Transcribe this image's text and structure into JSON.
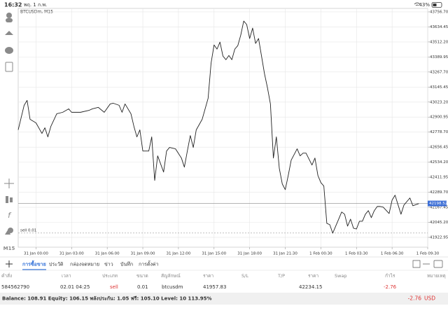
{
  "status_bar": {
    "time": "16:32",
    "date": "พฤ. 1 ก.พ.",
    "battery": "43%"
  },
  "chart_data": {
    "type": "line",
    "title": "BTCUSDm, M15",
    "timeframe": "M15",
    "x": [
      0,
      2,
      3,
      4,
      6,
      8,
      9,
      10,
      11,
      13,
      15,
      17,
      18,
      21,
      24,
      25,
      27,
      29,
      31,
      32,
      34,
      35,
      36,
      38,
      39,
      40,
      41,
      42,
      44,
      45,
      46,
      47,
      49,
      50,
      51,
      53,
      55,
      56,
      57,
      58,
      59,
      60,
      62,
      64,
      65,
      66,
      67,
      68,
      69,
      70,
      71,
      72,
      73,
      74,
      75,
      76,
      77,
      78,
      79,
      80,
      81,
      82,
      83,
      84,
      85,
      86,
      87,
      88,
      89,
      90,
      91,
      92,
      94,
      95,
      96,
      97,
      99,
      100,
      101,
      102,
      103,
      104,
      105,
      106,
      108,
      109,
      110,
      111,
      112,
      113,
      114,
      115,
      116,
      117,
      118,
      119,
      120,
      121,
      122,
      123,
      125,
      126,
      127,
      129,
      130,
      132,
      133,
      135
    ],
    "series": [
      {
        "name": "BTCUSDm",
        "color": "#222222",
        "values": [
          42797,
          42997,
          43037,
          42883,
          42854,
          42768,
          42814,
          42740,
          42825,
          42928,
          42940,
          42968,
          42940,
          42940,
          42957,
          42968,
          42980,
          42940,
          43008,
          43014,
          42997,
          42940,
          43008,
          42928,
          42825,
          42740,
          42797,
          42625,
          42625,
          42740,
          42386,
          42586,
          42454,
          42625,
          42654,
          42643,
          42568,
          42494,
          42625,
          42751,
          42654,
          42797,
          42883,
          43054,
          43340,
          43488,
          43454,
          43511,
          43397,
          43368,
          43402,
          43368,
          43454,
          43482,
          43568,
          43682,
          43654,
          43540,
          43625,
          43500,
          43540,
          43397,
          43254,
          43140,
          43008,
          42568,
          42740,
          42483,
          42357,
          42311,
          42426,
          42551,
          42643,
          42586,
          42608,
          42608,
          42511,
          42568,
          42426,
          42368,
          42340,
          42037,
          42026,
          41957,
          42071,
          42129,
          42111,
          42014,
          42071,
          41997,
          41991,
          42054,
          42054,
          42111,
          42140,
          42083,
          42140,
          42174,
          42174,
          42169,
          42117,
          42226,
          42266,
          42111,
          42186,
          42243,
          42180,
          42197
        ]
      }
    ],
    "xlim": [
      0,
      138
    ],
    "xticks": [
      {
        "value": 6,
        "label": "31 Jan 00:00"
      },
      {
        "value": 18,
        "label": "31 Jan 03:00"
      },
      {
        "value": 30,
        "label": "31 Jan 06:00"
      },
      {
        "value": 42,
        "label": "31 Jan 09:00"
      },
      {
        "value": 54,
        "label": "31 Jan 12:00"
      },
      {
        "value": 66,
        "label": "31 Jan 15:00"
      },
      {
        "value": 78,
        "label": "31 Jan 18:00"
      },
      {
        "value": 90,
        "label": "31 Jan 21:30"
      },
      {
        "value": 102,
        "label": "1 Feb 00:30"
      },
      {
        "value": 114,
        "label": "1 Feb 03:30"
      },
      {
        "value": 126,
        "label": "1 Feb 06:30"
      },
      {
        "value": 138,
        "label": "1 Feb 09:30"
      }
    ],
    "ylim": [
      41843,
      43785
    ],
    "yticks": [
      {
        "value": 43756.7,
        "label": "43756.70"
      },
      43634.45,
      {
        "value": 43512.2,
        "label": "43512.20"
      },
      43389.95,
      {
        "value": 43267.7,
        "label": "43267.70"
      },
      43145.45,
      {
        "value": 43023.2,
        "label": "43023.20"
      },
      42900.95,
      {
        "value": 42778.7,
        "label": "42778.70"
      },
      42656.45,
      {
        "value": 42534.2,
        "label": "42534.20"
      },
      42411.95,
      {
        "value": 42289.7,
        "label": "42289.70"
      },
      42167.45,
      {
        "value": 42045.2,
        "label": "42045.20"
      },
      41922.95
    ],
    "grid": true,
    "current_price": 42198.52,
    "order_line": {
      "label": "sell 0.01",
      "value": 41957.83
    }
  },
  "tabs": [
    "การซื้อขาย",
    "ประวัติ",
    "กล่องจดหมาย",
    "ข่าว",
    "บันทึก",
    "การตั้งค่า"
  ],
  "table": {
    "headers": [
      "คำสั่ง",
      "เวลา",
      "ประเภท",
      "ขนาด",
      "สัญลักษณ์",
      "ราคา",
      "S/L",
      "T/P",
      "ราคา",
      "Swap",
      "กำไร",
      "หมายเหตุ"
    ],
    "rows": [
      {
        "order": "584562790",
        "time": "02.01 04:25",
        "type": "sell",
        "volume": "0.01",
        "symbol": "btcusdm",
        "price": "41957.83",
        "current_price": "42234.15",
        "profit": "-2.76"
      }
    ]
  },
  "footer": {
    "summary": "Balance: 108.91  Equity: 106.15  พลังประกัน: 1.05  ฟรี: 105.10  Level: 10 113.95%",
    "profit": "-2.76",
    "currency": "USD"
  }
}
